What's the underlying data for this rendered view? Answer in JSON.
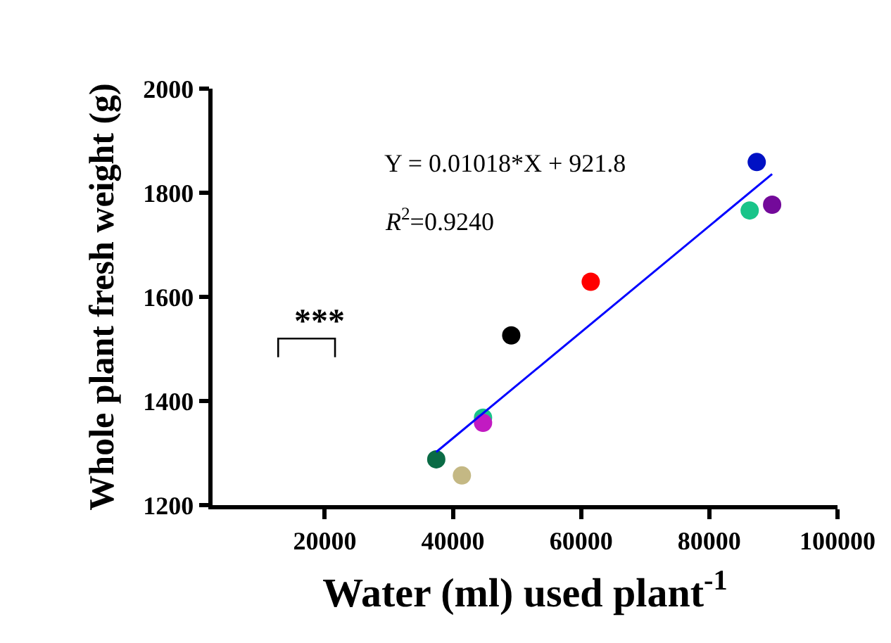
{
  "chart_data": {
    "type": "scatter",
    "xlabel": "Water (ml) used plant$^{-1}$",
    "ylabel": "Whole plant fresh weight (g)",
    "xlim": [
      2500,
      100000
    ],
    "xticks": [
      20000,
      40000,
      60000,
      80000,
      100000
    ],
    "ylim": [
      1200,
      2000
    ],
    "yticks": [
      1200,
      1400,
      1600,
      1800,
      2000
    ],
    "grid": false,
    "marker": "circle",
    "annotations": [
      "Y = 0.01018*X + 921.8",
      "R$^{2}$=0.9240",
      "***"
    ],
    "series": [
      {
        "type": "scatter",
        "x": [
          37400,
          41400,
          44700,
          44700,
          49100,
          61500,
          86300,
          87400,
          89800
        ],
        "values": [
          1288,
          1257,
          1368,
          1358,
          1526,
          1629,
          1766,
          1859,
          1777
        ],
        "colors": [
          "#0a6b45",
          "#c4b884",
          "#19c489",
          "#c21ac2",
          "#000000",
          "#ff0000",
          "#19c489",
          "#0011c4",
          "#730a9a"
        ]
      },
      {
        "type": "line",
        "x": [
          37400,
          89800
        ],
        "values": [
          1302,
          1836
        ],
        "color": "#0000ff",
        "marker": "none",
        "line_style": "solid"
      }
    ]
  }
}
